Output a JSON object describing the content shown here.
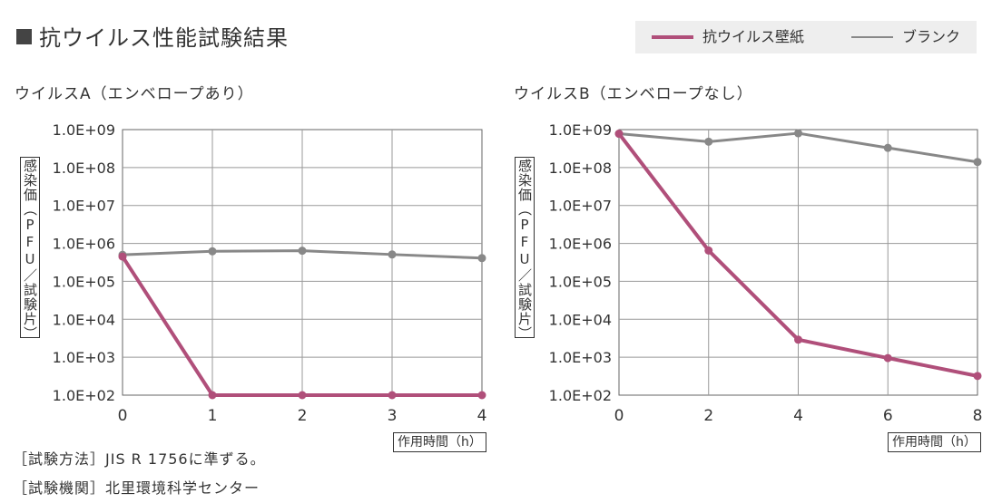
{
  "title": "抗ウイルス性能試験結果",
  "legend": [
    {
      "name": "抗ウイルス壁紙",
      "color": "#b04f7a"
    },
    {
      "name": "ブランク",
      "color": "#888888"
    }
  ],
  "charts": [
    {
      "subtitle": "ウイルスA（エンベロープあり）",
      "ylabel": "感染価（PFU／試験片）",
      "xlabel": "作用時間（h）"
    },
    {
      "subtitle": "ウイルスB（エンベロープなし）",
      "ylabel": "感染価（PFU／試験片）",
      "xlabel": "作用時間（h）"
    }
  ],
  "notes": {
    "method": "［試験方法］JIS R 1756に準ずる。",
    "institute": "［試験機関］北里環境科学センター"
  },
  "chart_data": [
    {
      "type": "line",
      "title": "ウイルスA（エンベロープあり）",
      "xlabel": "作用時間（h）",
      "ylabel": "感染価（PFU／試験片）",
      "yscale": "log",
      "ylim": [
        100,
        1000000000
      ],
      "xlim": [
        0,
        4
      ],
      "x_ticks": [
        "0",
        "1",
        "2",
        "3",
        "4"
      ],
      "y_ticks": [
        "1.0E+09",
        "1.0E+08",
        "1.0E+07",
        "1.0E+06",
        "1.0E+05",
        "1.0E+04",
        "1.0E+03",
        "1.0E+02"
      ],
      "grid": true,
      "series": [
        {
          "name": "ブランク",
          "color": "#888888",
          "x": [
            0,
            1,
            2,
            3,
            4
          ],
          "y": [
            500000,
            620000,
            640000,
            510000,
            410000
          ]
        },
        {
          "name": "抗ウイルス壁紙",
          "color": "#b04f7a",
          "x": [
            0,
            1,
            2,
            3,
            4
          ],
          "y": [
            450000,
            100,
            100,
            100,
            100
          ]
        }
      ]
    },
    {
      "type": "line",
      "title": "ウイルスB（エンベロープなし）",
      "xlabel": "作用時間（h）",
      "ylabel": "感染価（PFU／試験片）",
      "yscale": "log",
      "ylim": [
        100,
        1000000000
      ],
      "xlim": [
        0,
        8
      ],
      "x_ticks": [
        "0",
        "2",
        "4",
        "6",
        "8"
      ],
      "y_ticks": [
        "1.0E+09",
        "1.0E+08",
        "1.0E+07",
        "1.0E+06",
        "1.0E+05",
        "1.0E+04",
        "1.0E+03",
        "1.0E+02"
      ],
      "grid": true,
      "series": [
        {
          "name": "ブランク",
          "color": "#888888",
          "x": [
            0,
            2,
            4,
            6,
            8
          ],
          "y": [
            780000000,
            480000000,
            800000000,
            330000000,
            140000000
          ]
        },
        {
          "name": "抗ウイルス壁紙",
          "color": "#b04f7a",
          "x": [
            0,
            2,
            4,
            6,
            8
          ],
          "y": [
            780000000,
            650000,
            2900,
            950,
            320
          ]
        }
      ]
    }
  ]
}
